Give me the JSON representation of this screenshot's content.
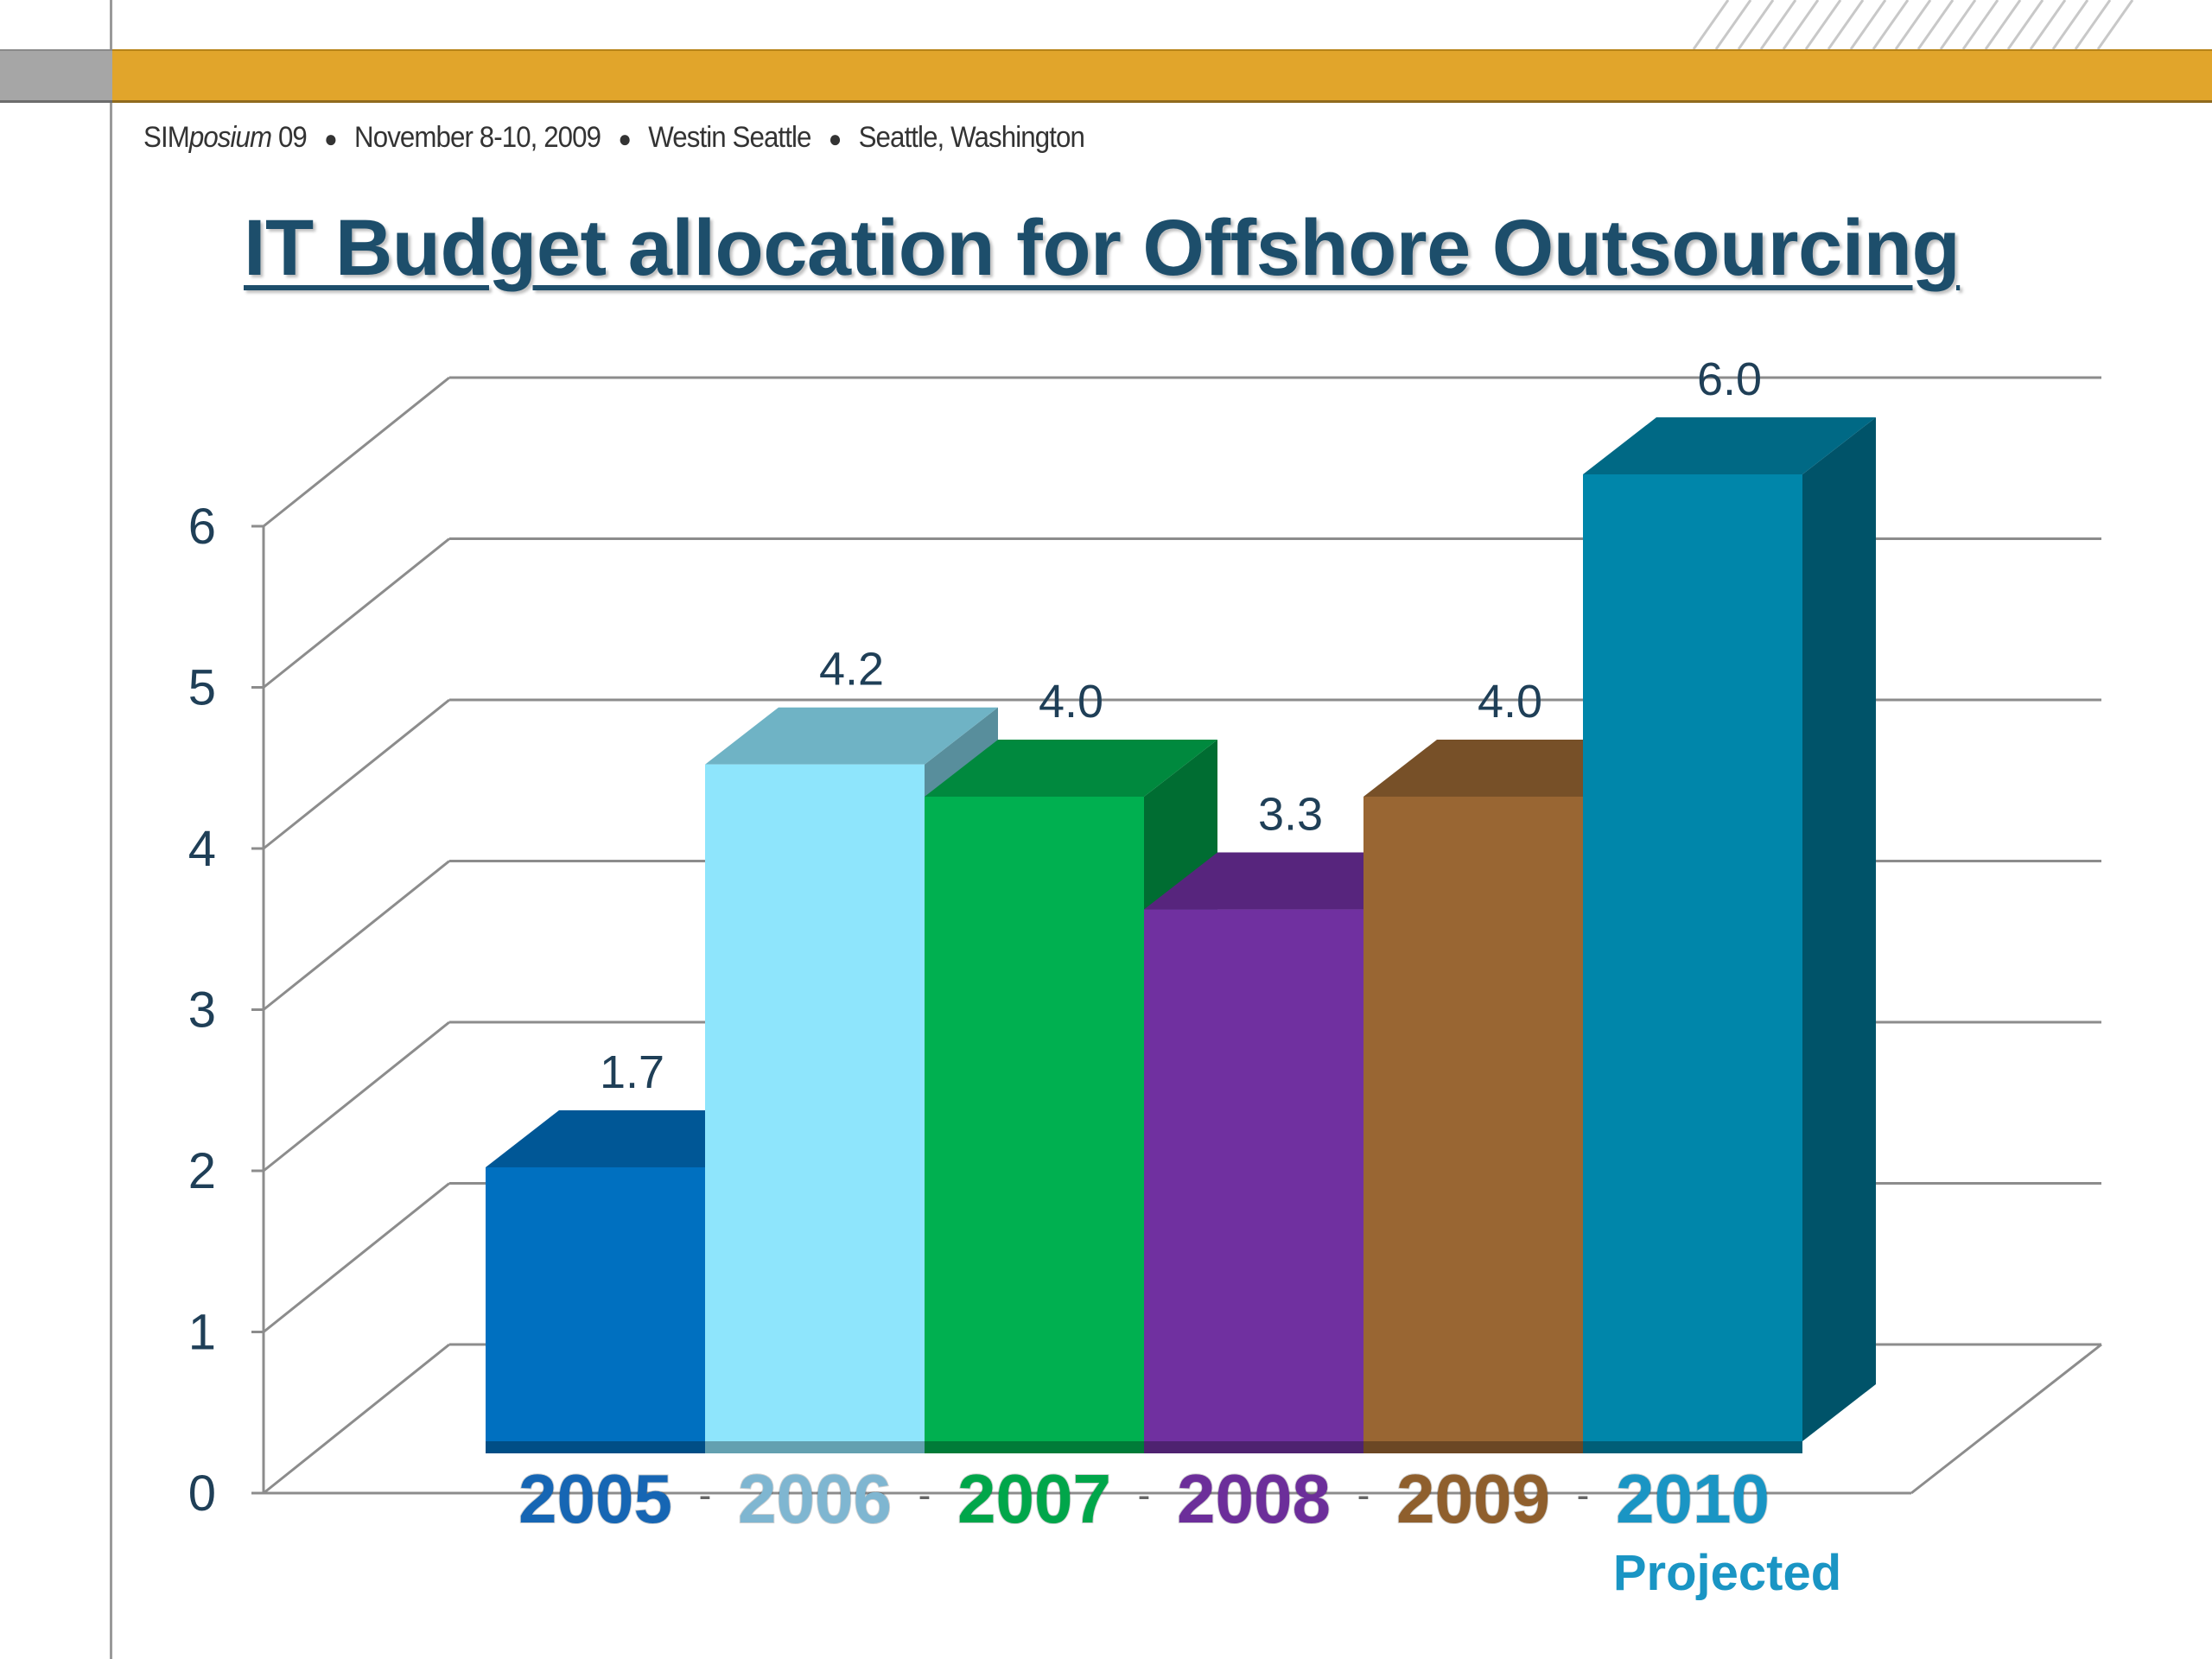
{
  "header": {
    "event_brand": "SIM",
    "event_brand_italic": "posium",
    "event_year": "09",
    "event_dates": "November 8-10, 2009",
    "event_venue": "Westin Seattle",
    "event_city": "Seattle, Washington",
    "band_color": "#e1a52b"
  },
  "chart_data": {
    "type": "bar",
    "style": "3d",
    "title": "IT Budget allocation for Offshore Outsourcing",
    "xlabel": "",
    "ylabel": "",
    "ylim": [
      0,
      6
    ],
    "yticks": [
      "0",
      "1",
      "2",
      "3",
      "4",
      "5",
      "6"
    ],
    "grid": true,
    "legend": "none",
    "categories": [
      "2005",
      "2006",
      "2007",
      "2008",
      "2009",
      "2010"
    ],
    "category_notes": [
      "",
      "",
      "",
      "",
      "",
      "Projected"
    ],
    "values": [
      1.7,
      4.2,
      4.0,
      3.3,
      4.0,
      6.0
    ],
    "value_labels": [
      "1.7",
      "4.2",
      "4.0",
      "3.3",
      "4.0",
      "6.0"
    ],
    "colors": [
      "#0070c0",
      "#8ee5fc",
      "#00b050",
      "#7030a0",
      "#996633",
      "#0086aa"
    ],
    "label_colors": [
      "#1666b4",
      "#7fb6d1",
      "#00a64a",
      "#6c2e9a",
      "#8f5f2d",
      "#1a95c4"
    ]
  }
}
